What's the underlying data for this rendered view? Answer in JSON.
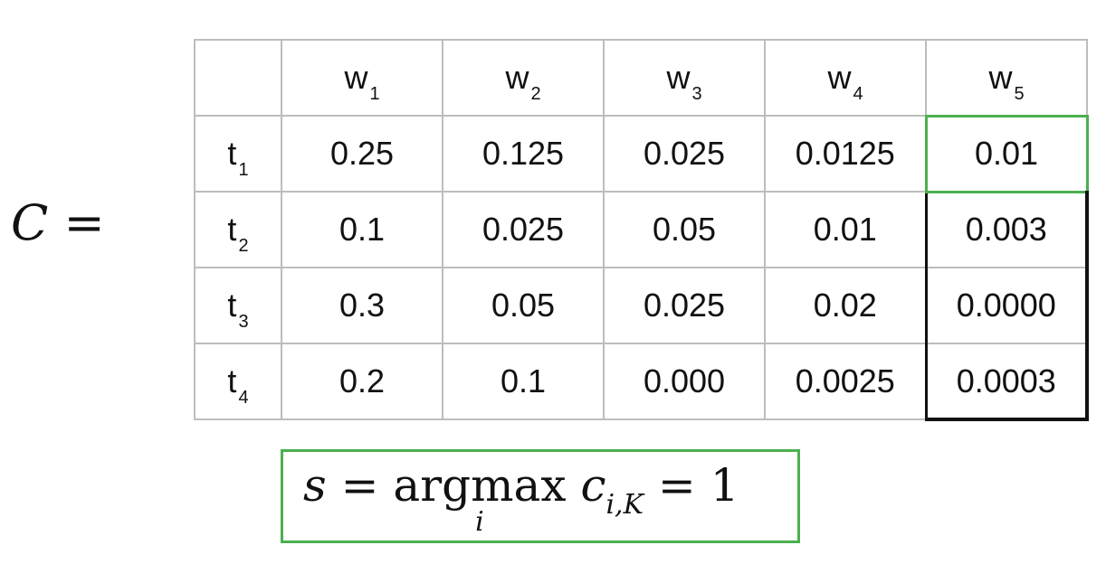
{
  "matrix_name": "C",
  "equals": "=",
  "columns": [
    {
      "symbol": "w",
      "index": "1"
    },
    {
      "symbol": "w",
      "index": "2"
    },
    {
      "symbol": "w",
      "index": "3"
    },
    {
      "symbol": "w",
      "index": "4"
    },
    {
      "symbol": "w",
      "index": "5"
    }
  ],
  "rows": [
    {
      "symbol": "t",
      "index": "1",
      "values": [
        "0.25",
        "0.125",
        "0.025",
        "0.0125",
        "0.01"
      ]
    },
    {
      "symbol": "t",
      "index": "2",
      "values": [
        "0.1",
        "0.025",
        "0.05",
        "0.01",
        "0.003"
      ]
    },
    {
      "symbol": "t",
      "index": "3",
      "values": [
        "0.3",
        "0.05",
        "0.025",
        "0.02",
        "0.0000"
      ]
    },
    {
      "symbol": "t",
      "index": "4",
      "values": [
        "0.2",
        "0.1",
        "0.000",
        "0.0025",
        "0.0003"
      ]
    }
  ],
  "highlight": {
    "green_cell_color": "#4caf50",
    "last_column_border_color": "#111111"
  },
  "formula": {
    "lhs": "s",
    "eq1": "=",
    "operator": "argmax",
    "operator_sub": "i",
    "term": "c",
    "term_sub": "i,K",
    "eq2": "=",
    "rhs": "1"
  }
}
